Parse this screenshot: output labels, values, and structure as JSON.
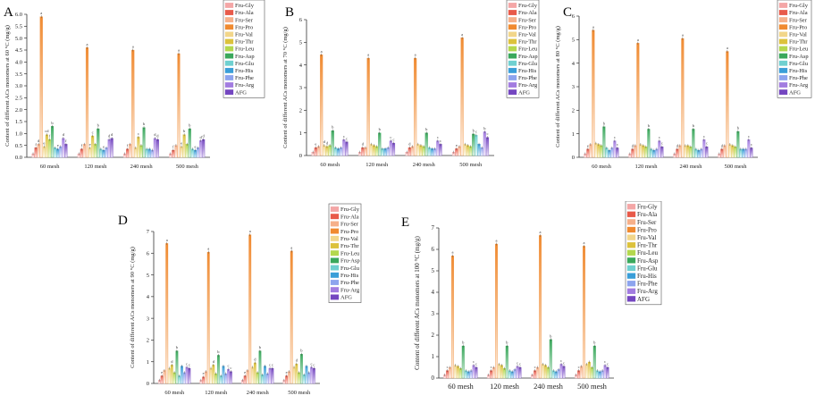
{
  "series": [
    {
      "name": "Fru-Gly",
      "color": "#f4a6a6"
    },
    {
      "name": "Fru-Ala",
      "color": "#e85a4a"
    },
    {
      "name": "Fru-Ser",
      "color": "#f6b08a"
    },
    {
      "name": "Fru-Pro",
      "color": "#f08a30"
    },
    {
      "name": "Fru-Val",
      "color": "#f2d68a"
    },
    {
      "name": "Fru-Thr",
      "color": "#dcc23c"
    },
    {
      "name": "Fru-Leu",
      "color": "#b4d84e"
    },
    {
      "name": "Fru-Asp",
      "color": "#3aa85c"
    },
    {
      "name": "Fru-Glu",
      "color": "#6fd0d0"
    },
    {
      "name": "Fru-His",
      "color": "#3a9ed8"
    },
    {
      "name": "Fru-Phe",
      "color": "#8da4ee"
    },
    {
      "name": "Fru-Arg",
      "color": "#a27ce0"
    },
    {
      "name": "AFG",
      "color": "#7446c0"
    }
  ],
  "chart_data": [
    {
      "panel": "A",
      "type": "bar",
      "categories": [
        "60 mesh",
        "120 mesh",
        "240 mesh",
        "500 mesh"
      ],
      "ylabel": "Content of different ACs monomers at 60 °C (mg/g)",
      "ylim": [
        0,
        6.0
      ],
      "yticks": [
        "0.0",
        "0.5",
        "1.0",
        "1.5",
        "2.0",
        "2.5",
        "3.0",
        "3.5",
        "4.0",
        "4.5",
        "5.0",
        "5.5",
        "6.0"
      ],
      "tick_step": 0.5,
      "legend": "top-right",
      "values": [
        [
          0.15,
          0.4,
          0.55,
          5.9,
          0.45,
          0.95,
          0.75,
          1.3,
          0.4,
          0.35,
          0.45,
          0.8,
          0.55
        ],
        [
          0.15,
          0.35,
          0.55,
          4.6,
          0.4,
          0.9,
          0.55,
          1.2,
          0.35,
          0.3,
          0.4,
          0.75,
          0.8
        ],
        [
          0.15,
          0.35,
          0.55,
          4.5,
          0.4,
          0.85,
          0.5,
          1.25,
          0.35,
          0.35,
          0.3,
          0.8,
          0.75
        ],
        [
          0.15,
          0.3,
          0.5,
          4.35,
          0.45,
          0.95,
          0.55,
          1.2,
          0.35,
          0.3,
          0.4,
          0.7,
          0.75
        ]
      ],
      "bar_labels": [
        [
          "",
          "f",
          "d",
          "a",
          "e",
          "cd",
          "f",
          "b",
          "",
          "e",
          "",
          "d",
          "f"
        ],
        [
          "",
          "f",
          "",
          "a",
          "e",
          "c",
          "",
          "b",
          "",
          "e",
          "",
          "d",
          "d"
        ],
        [
          "",
          "f",
          "",
          "a",
          "",
          "c",
          "",
          "b",
          "",
          "",
          "",
          "d",
          "d"
        ],
        [
          "",
          "f",
          "",
          "a",
          "e",
          "b",
          "",
          "b",
          "",
          "e",
          "",
          "d",
          "d"
        ]
      ]
    },
    {
      "panel": "B",
      "type": "bar",
      "categories": [
        "60 mesh",
        "120 mesh",
        "240 mesh",
        "500 mesh"
      ],
      "ylabel": "Content of different ACs monomers at 70 °C (mg/g)",
      "ylim": [
        0,
        6
      ],
      "yticks": [
        "0",
        "1",
        "2",
        "3",
        "4",
        "5",
        "6"
      ],
      "tick_step": 1,
      "legend": "top-right",
      "values": [
        [
          0.15,
          0.35,
          0.4,
          4.45,
          0.45,
          0.4,
          0.45,
          1.1,
          0.35,
          0.3,
          0.35,
          0.7,
          0.6
        ],
        [
          0.15,
          0.35,
          0.35,
          4.3,
          0.5,
          0.45,
          0.4,
          1.0,
          0.3,
          0.3,
          0.35,
          0.65,
          0.55
        ],
        [
          0.15,
          0.35,
          0.4,
          4.3,
          0.5,
          0.45,
          0.4,
          1.0,
          0.35,
          0.3,
          0.3,
          0.65,
          0.5
        ],
        [
          0.15,
          0.3,
          0.4,
          5.2,
          0.5,
          0.45,
          0.4,
          0.95,
          0.9,
          0.5,
          0.35,
          1.05,
          0.8
        ]
      ],
      "bar_labels": [
        [
          "",
          "e",
          "",
          "a",
          "d",
          "d",
          "",
          "b",
          "",
          "",
          "",
          "c",
          "c"
        ],
        [
          "",
          "d",
          "",
          "a",
          "",
          "",
          "",
          "b",
          "",
          "",
          "",
          "c",
          "c"
        ],
        [
          "",
          "d",
          "",
          "a",
          "",
          "",
          "",
          "b",
          "",
          "",
          "",
          "c",
          "c"
        ],
        [
          "",
          "e",
          "",
          "a",
          "",
          "",
          "",
          "b",
          "c",
          "",
          "",
          "b",
          "c"
        ]
      ]
    },
    {
      "panel": "C",
      "type": "bar",
      "categories": [
        "60 mesh",
        "120 mesh",
        "240 mesh",
        "500 mesh"
      ],
      "ylabel": "Content of different ACs monomers at 80 °C (mg/g)",
      "ylim": [
        0,
        6
      ],
      "yticks": [
        "0",
        "1",
        "2",
        "3",
        "4",
        "5",
        "6"
      ],
      "tick_step": 1,
      "legend": "top-right",
      "values": [
        [
          0.15,
          0.35,
          0.55,
          5.4,
          0.6,
          0.55,
          0.5,
          1.3,
          0.4,
          0.3,
          0.4,
          0.7,
          0.4
        ],
        [
          0.15,
          0.35,
          0.5,
          4.85,
          0.55,
          0.5,
          0.45,
          1.2,
          0.35,
          0.3,
          0.35,
          0.7,
          0.45
        ],
        [
          0.15,
          0.35,
          0.5,
          5.05,
          0.5,
          0.5,
          0.45,
          1.2,
          0.35,
          0.3,
          0.35,
          0.75,
          0.45
        ],
        [
          0.15,
          0.35,
          0.5,
          4.5,
          0.55,
          0.5,
          0.45,
          1.1,
          0.35,
          0.35,
          0.35,
          0.75,
          0.4
        ]
      ],
      "bar_labels": [
        [
          "",
          "e",
          "",
          "a",
          "",
          "",
          "",
          "b",
          "",
          "",
          "",
          "c",
          "c"
        ],
        [
          "",
          "d",
          "",
          "a",
          "",
          "",
          "",
          "b",
          "",
          "",
          "",
          "c",
          "c"
        ],
        [
          "",
          "d",
          "",
          "a",
          "",
          "",
          "",
          "b",
          "",
          "",
          "",
          "c",
          "c"
        ],
        [
          "",
          "d",
          "",
          "a",
          "",
          "",
          "",
          "b",
          "",
          "",
          "",
          "c",
          "c"
        ]
      ]
    },
    {
      "panel": "D",
      "type": "bar",
      "categories": [
        "60 mesh",
        "120 mesh",
        "240 mesh",
        "500 mesh"
      ],
      "ylabel": "Content of different ACs monomers at 90 °C (mg/g)",
      "ylim": [
        0,
        7
      ],
      "yticks": [
        "0",
        "1",
        "2",
        "3",
        "4",
        "5",
        "6",
        "7"
      ],
      "tick_step": 1,
      "legend": "top-right",
      "values": [
        [
          0.15,
          0.35,
          0.6,
          6.45,
          0.7,
          0.85,
          0.5,
          1.5,
          0.35,
          0.8,
          0.5,
          0.75,
          0.7
        ],
        [
          0.15,
          0.3,
          0.55,
          6.05,
          0.7,
          0.85,
          0.45,
          1.3,
          0.35,
          0.8,
          0.45,
          0.65,
          0.55
        ],
        [
          0.15,
          0.35,
          0.6,
          6.85,
          0.75,
          0.95,
          0.5,
          1.5,
          0.4,
          0.8,
          0.45,
          0.7,
          0.7
        ],
        [
          0.15,
          0.35,
          0.55,
          6.1,
          0.75,
          0.9,
          0.5,
          1.35,
          0.4,
          0.8,
          0.5,
          0.75,
          0.7
        ]
      ],
      "bar_labels": [
        [
          "",
          "e",
          "",
          "a",
          "",
          "d",
          "",
          "b",
          "",
          "",
          "",
          "c",
          "c"
        ],
        [
          "",
          "e",
          "",
          "a",
          "",
          "d",
          "",
          "b",
          "",
          "",
          "",
          "c",
          "c"
        ],
        [
          "",
          "e",
          "",
          "a",
          "",
          "d",
          "",
          "b",
          "",
          "",
          "",
          "c",
          "c"
        ],
        [
          "",
          "e",
          "",
          "a",
          "",
          "d",
          "",
          "b",
          "",
          "",
          "",
          "c",
          "c"
        ]
      ]
    },
    {
      "panel": "E",
      "type": "bar",
      "categories": [
        "60 mesh",
        "120 mesh",
        "240 mesh",
        "500 mesh"
      ],
      "ylabel": "Content of different ACs monomers at 100 °C (mg/g)",
      "ylim": [
        0,
        7
      ],
      "yticks": [
        "0",
        "1",
        "2",
        "3",
        "4",
        "5",
        "6",
        "7"
      ],
      "tick_step": 1,
      "legend": "top-right",
      "values": [
        [
          0.15,
          0.35,
          0.5,
          5.7,
          0.6,
          0.55,
          0.45,
          1.5,
          0.35,
          0.3,
          0.35,
          0.6,
          0.5
        ],
        [
          0.15,
          0.35,
          0.5,
          6.25,
          0.65,
          0.6,
          0.45,
          1.5,
          0.35,
          0.3,
          0.4,
          0.55,
          0.5
        ],
        [
          0.15,
          0.35,
          0.5,
          6.65,
          0.65,
          0.6,
          0.5,
          1.8,
          0.35,
          0.3,
          0.4,
          0.65,
          0.55
        ],
        [
          0.15,
          0.35,
          0.55,
          6.15,
          0.65,
          0.75,
          0.5,
          1.5,
          0.35,
          0.3,
          0.35,
          0.6,
          0.5
        ]
      ],
      "bar_labels": [
        [
          "",
          "c",
          "",
          "a",
          "",
          "",
          "",
          "b",
          "",
          "",
          "",
          "c",
          "c"
        ],
        [
          "",
          "c",
          "",
          "a",
          "",
          "",
          "",
          "b",
          "",
          "",
          "",
          "c",
          "c"
        ],
        [
          "",
          "c",
          "",
          "a",
          "",
          "",
          "",
          "b",
          "",
          "",
          "",
          "c",
          "c"
        ],
        [
          "",
          "c",
          "",
          "a",
          "",
          "",
          "",
          "b",
          "",
          "",
          "",
          "c",
          "c"
        ]
      ]
    }
  ]
}
